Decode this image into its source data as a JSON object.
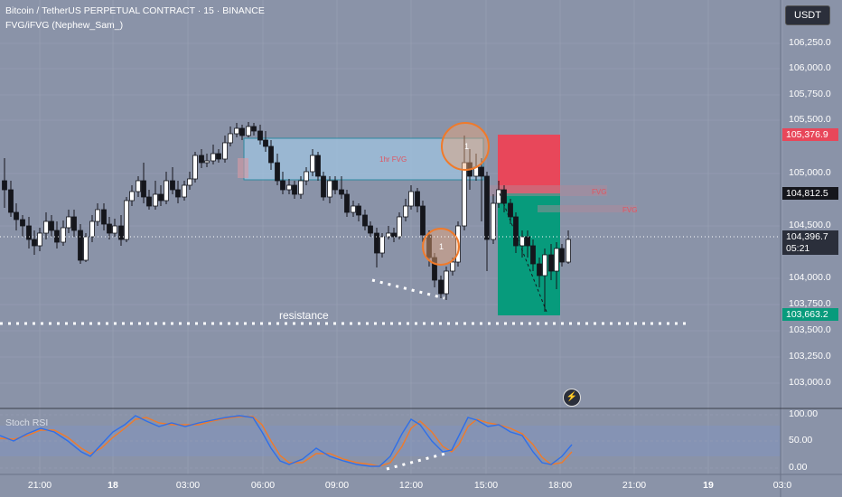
{
  "header": {
    "symbol_line": "Bitcoin / TetherUS PERPETUAL CONTRACT · 15 · BINANCE",
    "indicator_line": "FVG/iFVG (Nephew_Sam_)"
  },
  "currency_button": "USDT",
  "price_axis": {
    "ticks": [
      "106,250.0",
      "106,000.0",
      "105,750.0",
      "105,500.0",
      "105,000.0",
      "104,500.0",
      "104,000.0",
      "103,750.0",
      "103,500.0",
      "103,250.0",
      "103,000.0"
    ]
  },
  "price_tags": {
    "target": "105,376.9",
    "last": "104,812.5",
    "current_price": "104,396.7",
    "countdown": "05:21",
    "stop": "103,663.2"
  },
  "annotations": {
    "resistance": "resistance",
    "fvg_1hr": "1hr FVG",
    "fvg_a": "FVG",
    "fvg_b": "FVG",
    "circle_label_1": "1",
    "circle_label_2": "1"
  },
  "rsi": {
    "name": "Stoch RSI",
    "ticks": [
      "100.00",
      "50.00",
      "0.00"
    ]
  },
  "time_axis": {
    "labels": [
      {
        "text": "21:00",
        "bold": false
      },
      {
        "text": "18",
        "bold": true
      },
      {
        "text": "03:00",
        "bold": false
      },
      {
        "text": "06:00",
        "bold": false
      },
      {
        "text": "09:00",
        "bold": false
      },
      {
        "text": "12:00",
        "bold": false
      },
      {
        "text": "15:00",
        "bold": false
      },
      {
        "text": "18:00",
        "bold": false
      },
      {
        "text": "21:00",
        "bold": false
      },
      {
        "text": "19",
        "bold": true
      },
      {
        "text": "03:0",
        "bold": false
      }
    ]
  },
  "colors": {
    "background": "#8a93a8",
    "up_candle": "#ffffff",
    "down_candle": "#15161c",
    "target_zone": "#e8475a",
    "stop_zone": "#079b7c",
    "fvg_box": "#9fc3e0",
    "rsi_k": "#2f6fe8",
    "rsi_d": "#f07a2a"
  }
}
